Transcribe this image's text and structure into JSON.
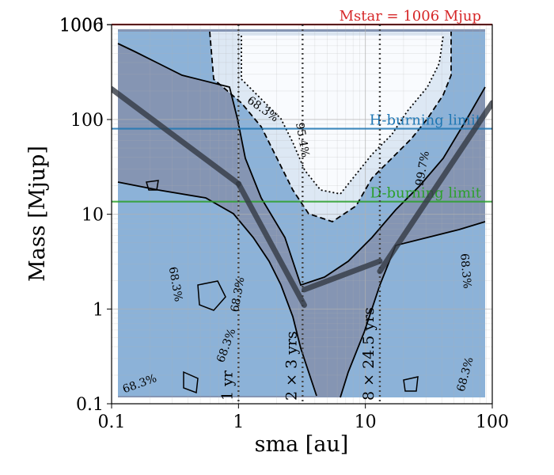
{
  "chart_data": {
    "type": "contour",
    "xlabel": "sma [au]",
    "ylabel": "Mass [Mjup]",
    "x_scale": "log",
    "y_scale": "log",
    "xlim": [
      0.1,
      100
    ],
    "ylim": [
      0.1,
      1006
    ],
    "x_ticks": [
      {
        "value": 0.1,
        "label": "0.1"
      },
      {
        "value": 1,
        "label": "1"
      },
      {
        "value": 10,
        "label": "10"
      },
      {
        "value": 100,
        "label": "100"
      }
    ],
    "y_ticks": [
      {
        "value": 0.1,
        "label": "0.1"
      },
      {
        "value": 1,
        "label": "1"
      },
      {
        "value": 10,
        "label": "10"
      },
      {
        "value": 100,
        "label": "100"
      },
      {
        "value": 1000,
        "label": "1000"
      },
      {
        "value": 1006,
        "label": "1006"
      }
    ],
    "grid": true,
    "reference_lines": [
      {
        "orientation": "horizontal",
        "value": 1006,
        "label": "Mstar = 1006 Mjup",
        "color": "#d62728"
      },
      {
        "orientation": "horizontal",
        "value": 80,
        "label": "H-burning limit",
        "color": "#1f77b4"
      },
      {
        "orientation": "horizontal",
        "value": 13.6,
        "label": "D-burning limit",
        "color": "#2ca02c"
      }
    ],
    "period_lines": [
      {
        "sma": 1.0,
        "label": "1 yr"
      },
      {
        "sma": 3.2,
        "label": "2 × 3 yrs"
      },
      {
        "sma": 13.0,
        "label": "8 × 24.5 yrs"
      }
    ],
    "contour_levels": [
      {
        "level": "68.3%",
        "style": "solid"
      },
      {
        "level": "95.4%",
        "style": "dashed"
      },
      {
        "level": "99.7%",
        "style": "dotted"
      }
    ],
    "contour_labels": [
      {
        "text": "68.3%",
        "x": 1.5,
        "y": 120
      },
      {
        "text": "68.3%",
        "x": 0.3,
        "y": 1.8
      },
      {
        "text": "68.3%",
        "x": 1.05,
        "y": 1.4
      },
      {
        "text": "68.3%",
        "x": 0.85,
        "y": 0.4
      },
      {
        "text": "68.3%",
        "x": 0.17,
        "y": 0.15
      },
      {
        "text": "68.3%",
        "x": 58,
        "y": 2.5
      },
      {
        "text": "68.3%",
        "x": 65,
        "y": 0.2
      },
      {
        "text": "95.4%",
        "x": 3.0,
        "y": 60
      },
      {
        "text": "99.7%",
        "x": 30,
        "y": 30
      }
    ],
    "sensitivity_curve": {
      "segments": [
        {
          "x": [
            0.1,
            1.0
          ],
          "y": [
            210,
            21
          ]
        },
        {
          "x": [
            1.0,
            3.3
          ],
          "y": [
            21,
            1.1
          ]
        },
        {
          "x": [
            3.3,
            13.0
          ],
          "y": [
            1.6,
            3.2
          ]
        },
        {
          "x": [
            13.0,
            100
          ],
          "y": [
            2.5,
            150
          ]
        }
      ],
      "color": "#333a44"
    },
    "colors": {
      "outer_fill": "#8595b3",
      "band_68": "#8cb2d8",
      "band_95": "#dde8f4",
      "band_99": "#f9fbfe"
    }
  }
}
